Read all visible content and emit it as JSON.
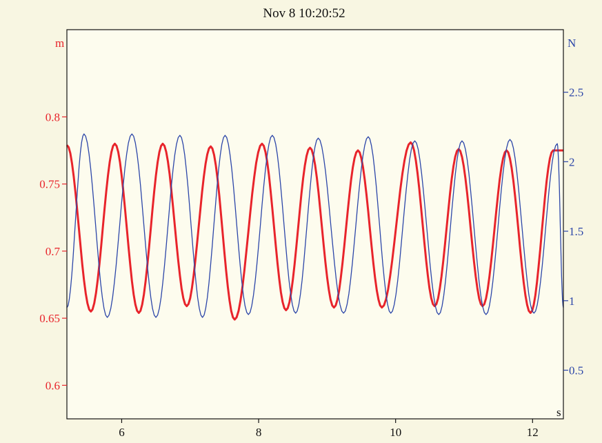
{
  "colors": {
    "background": "#f8f6e2",
    "plot_background": "#fdfcee",
    "series_left": "#e8242b",
    "series_right": "#2b45a8",
    "frame": "#111111"
  },
  "chart_data": {
    "type": "line",
    "title": "Nov 8 10:20:52",
    "xlabel": "s",
    "ylabel_left": "m",
    "ylabel_right": "N",
    "xlim": [
      5.2,
      12.45
    ],
    "ylim_left": [
      0.575,
      0.865
    ],
    "ylim_right": [
      0.15,
      2.95
    ],
    "x_ticks": [
      6,
      8,
      10,
      12
    ],
    "y_left_ticks": [
      {
        "value": 0.6,
        "label": "0.6"
      },
      {
        "value": 0.65,
        "label": "0.65"
      },
      {
        "value": 0.7,
        "label": "0.7"
      },
      {
        "value": 0.75,
        "label": "0.75"
      },
      {
        "value": 0.8,
        "label": "0.8"
      }
    ],
    "y_right_ticks": [
      {
        "value": 0.5,
        "label": "0.5"
      },
      {
        "value": 1,
        "label": "1"
      },
      {
        "value": 1.5,
        "label": "1.5"
      },
      {
        "value": 2,
        "label": "2"
      },
      {
        "value": 2.5,
        "label": "2.5"
      }
    ],
    "grid": false,
    "series": [
      {
        "axis": "left",
        "color": "#e8242b",
        "points": [
          [
            5.2,
            0.779
          ],
          [
            5.55,
            0.655
          ],
          [
            5.9,
            0.78
          ],
          [
            6.25,
            0.654
          ],
          [
            6.6,
            0.78
          ],
          [
            6.95,
            0.659
          ],
          [
            7.3,
            0.778
          ],
          [
            7.65,
            0.649
          ],
          [
            8.05,
            0.78
          ],
          [
            8.4,
            0.656
          ],
          [
            8.75,
            0.777
          ],
          [
            9.1,
            0.658
          ],
          [
            9.45,
            0.775
          ],
          [
            9.8,
            0.658
          ],
          [
            10.22,
            0.781
          ],
          [
            10.57,
            0.659
          ],
          [
            10.92,
            0.776
          ],
          [
            11.27,
            0.659
          ],
          [
            11.62,
            0.775
          ],
          [
            11.97,
            0.654
          ],
          [
            12.3,
            0.775
          ],
          [
            12.45,
            0.775
          ]
        ]
      },
      {
        "axis": "right",
        "color": "#2b45a8",
        "points": [
          [
            5.2,
            0.95
          ],
          [
            5.45,
            2.2
          ],
          [
            5.79,
            0.88
          ],
          [
            6.15,
            2.2
          ],
          [
            6.5,
            0.88
          ],
          [
            6.85,
            2.19
          ],
          [
            7.18,
            0.88
          ],
          [
            7.51,
            2.19
          ],
          [
            7.85,
            0.9
          ],
          [
            8.2,
            2.19
          ],
          [
            8.54,
            0.91
          ],
          [
            8.87,
            2.17
          ],
          [
            9.24,
            0.91
          ],
          [
            9.6,
            2.18
          ],
          [
            9.93,
            0.91
          ],
          [
            10.28,
            2.15
          ],
          [
            10.63,
            0.9
          ],
          [
            10.97,
            2.15
          ],
          [
            11.32,
            0.9
          ],
          [
            11.67,
            2.16
          ],
          [
            12.02,
            0.91
          ],
          [
            12.36,
            2.13
          ],
          [
            12.45,
            0.95
          ]
        ]
      }
    ]
  }
}
